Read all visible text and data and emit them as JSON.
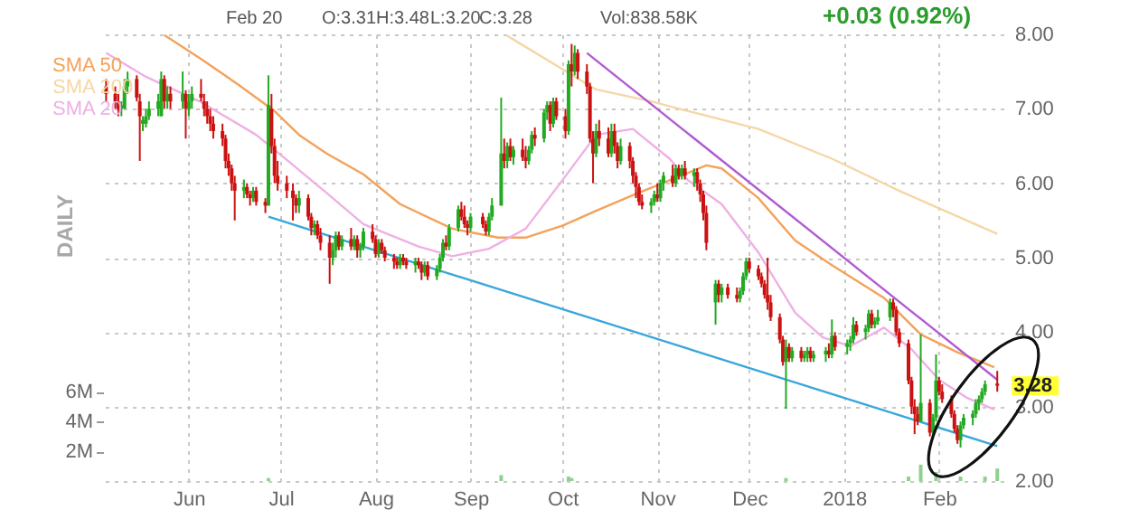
{
  "chart_data": {
    "type": "candlestick",
    "annotations": [
      "Feb 20",
      "O:3.31",
      "H:3.48",
      "L:3.20",
      "C:3.28",
      "Vol:838.58K",
      "+0.03 (0.92%)",
      "DAILY",
      {
        "text": "3.28",
        "x": "2018-02-20",
        "y": 3.28
      }
    ],
    "x": [
      "2017-05-05",
      "2017-05-08",
      "2017-05-09",
      "2017-05-10",
      "2017-05-11",
      "2017-05-12",
      "2017-05-15",
      "2017-05-16",
      "2017-05-17",
      "2017-05-18",
      "2017-05-19",
      "2017-05-22",
      "2017-05-23",
      "2017-05-24",
      "2017-05-25",
      "2017-05-26",
      "2017-05-30",
      "2017-05-31",
      "2017-06-01",
      "2017-06-02",
      "2017-06-05",
      "2017-06-06",
      "2017-06-07",
      "2017-06-08",
      "2017-06-09",
      "2017-06-12",
      "2017-06-13",
      "2017-06-14",
      "2017-06-15",
      "2017-06-16",
      "2017-06-19",
      "2017-06-20",
      "2017-06-21",
      "2017-06-22",
      "2017-06-23",
      "2017-06-26",
      "2017-06-27",
      "2017-06-28",
      "2017-06-29",
      "2017-06-30",
      "2017-07-03",
      "2017-07-05",
      "2017-07-06",
      "2017-07-07",
      "2017-07-10",
      "2017-07-11",
      "2017-07-12",
      "2017-07-13",
      "2017-07-14",
      "2017-07-17",
      "2017-07-18",
      "2017-07-19",
      "2017-07-20",
      "2017-07-21",
      "2017-07-24",
      "2017-07-25",
      "2017-07-26",
      "2017-07-27",
      "2017-07-28",
      "2017-07-31",
      "2017-08-01",
      "2017-08-02",
      "2017-08-03",
      "2017-08-04",
      "2017-08-07",
      "2017-08-08",
      "2017-08-09",
      "2017-08-10",
      "2017-08-11",
      "2017-08-14",
      "2017-08-15",
      "2017-08-16",
      "2017-08-17",
      "2017-08-18",
      "2017-08-21",
      "2017-08-22",
      "2017-08-23",
      "2017-08-24",
      "2017-08-25",
      "2017-08-28",
      "2017-08-29",
      "2017-08-30",
      "2017-08-31",
      "2017-09-01",
      "2017-09-05",
      "2017-09-06",
      "2017-09-07",
      "2017-09-08",
      "2017-09-11",
      "2017-09-12",
      "2017-09-13",
      "2017-09-14",
      "2017-09-15",
      "2017-09-18",
      "2017-09-19",
      "2017-09-20",
      "2017-09-21",
      "2017-09-22",
      "2017-09-25",
      "2017-09-26",
      "2017-09-27",
      "2017-09-28",
      "2017-09-29",
      "2017-10-02",
      "2017-10-03",
      "2017-10-04",
      "2017-10-05",
      "2017-10-06",
      "2017-10-09",
      "2017-10-10",
      "2017-10-11",
      "2017-10-12",
      "2017-10-13",
      "2017-10-16",
      "2017-10-17",
      "2017-10-18",
      "2017-10-19",
      "2017-10-20",
      "2017-10-23",
      "2017-10-24",
      "2017-10-25",
      "2017-10-26",
      "2017-10-27",
      "2017-10-30",
      "2017-10-31",
      "2017-11-01",
      "2017-11-02",
      "2017-11-03",
      "2017-11-06",
      "2017-11-07",
      "2017-11-08",
      "2017-11-09",
      "2017-11-10",
      "2017-11-13",
      "2017-11-14",
      "2017-11-15",
      "2017-11-16",
      "2017-11-17",
      "2017-11-20",
      "2017-11-21",
      "2017-11-22",
      "2017-11-24",
      "2017-11-27",
      "2017-11-28",
      "2017-11-29",
      "2017-11-30",
      "2017-12-01",
      "2017-12-04",
      "2017-12-05",
      "2017-12-06",
      "2017-12-07",
      "2017-12-08",
      "2017-12-11",
      "2017-12-12",
      "2017-12-13",
      "2017-12-14",
      "2017-12-15",
      "2017-12-18",
      "2017-12-19",
      "2017-12-20",
      "2017-12-21",
      "2017-12-22",
      "2017-12-26",
      "2017-12-27",
      "2017-12-28",
      "2017-12-29",
      "2018-01-02",
      "2018-01-03",
      "2018-01-04",
      "2018-01-05",
      "2018-01-08",
      "2018-01-09",
      "2018-01-10",
      "2018-01-11",
      "2018-01-12",
      "2018-01-16",
      "2018-01-17",
      "2018-01-18",
      "2018-01-19",
      "2018-01-22",
      "2018-01-23",
      "2018-01-24",
      "2018-01-25",
      "2018-01-26",
      "2018-01-29",
      "2018-01-30",
      "2018-01-31",
      "2018-02-01",
      "2018-02-02",
      "2018-02-05",
      "2018-02-06",
      "2018-02-07",
      "2018-02-08",
      "2018-02-09",
      "2018-02-12",
      "2018-02-13",
      "2018-02-14",
      "2018-02-15",
      "2018-02-16",
      "2018-02-20"
    ],
    "ohlc": [
      [
        7.3,
        7.4,
        7.1,
        7.2
      ],
      [
        7.2,
        7.3,
        7.0,
        7.1
      ],
      [
        7.1,
        7.2,
        6.9,
        7.0
      ],
      [
        7.0,
        7.1,
        6.9,
        7.05
      ],
      [
        7.0,
        7.4,
        7.0,
        7.3
      ],
      [
        7.3,
        7.5,
        7.2,
        7.4
      ],
      [
        7.4,
        7.45,
        7.1,
        7.15
      ],
      [
        7.1,
        7.2,
        6.3,
        6.9
      ],
      [
        6.8,
        6.9,
        6.7,
        6.85
      ],
      [
        6.8,
        7.0,
        6.75,
        6.9
      ],
      [
        6.9,
        7.1,
        6.85,
        7.0
      ],
      [
        7.0,
        7.2,
        6.9,
        7.1
      ],
      [
        6.9,
        7.5,
        6.9,
        7.4
      ],
      [
        7.4,
        7.45,
        7.0,
        7.1
      ],
      [
        7.1,
        7.3,
        7.0,
        7.2
      ],
      [
        7.2,
        7.3,
        7.0,
        7.1
      ],
      [
        7.1,
        7.5,
        7.0,
        7.2
      ],
      [
        7.2,
        7.25,
        6.6,
        7.0
      ],
      [
        7.0,
        7.2,
        6.9,
        7.1
      ],
      [
        7.1,
        7.3,
        7.0,
        7.2
      ],
      [
        7.2,
        7.4,
        7.1,
        7.15
      ],
      [
        7.1,
        7.2,
        6.9,
        7.0
      ],
      [
        7.0,
        7.1,
        6.8,
        6.9
      ],
      [
        6.9,
        7.0,
        6.7,
        6.8
      ],
      [
        6.8,
        6.9,
        6.6,
        6.7
      ],
      [
        6.7,
        6.8,
        6.5,
        6.6
      ],
      [
        6.6,
        6.65,
        6.2,
        6.3
      ],
      [
        6.3,
        6.4,
        6.1,
        6.2
      ],
      [
        6.2,
        6.25,
        5.9,
        6.0
      ],
      [
        6.0,
        6.1,
        5.5,
        5.9
      ],
      [
        5.9,
        6.05,
        5.8,
        5.95
      ],
      [
        5.95,
        6.0,
        5.8,
        5.85
      ],
      [
        5.85,
        5.9,
        5.7,
        5.8
      ],
      [
        5.8,
        5.95,
        5.75,
        5.9
      ],
      [
        5.9,
        5.95,
        5.7,
        5.75
      ],
      [
        5.75,
        5.8,
        5.6,
        5.7
      ],
      [
        5.7,
        7.45,
        5.7,
        7.05
      ],
      [
        7.0,
        7.2,
        6.4,
        6.5
      ],
      [
        6.5,
        6.6,
        6.0,
        6.1
      ],
      [
        6.1,
        6.3,
        5.9,
        6.0
      ],
      [
        6.0,
        6.1,
        5.8,
        5.9
      ],
      [
        5.9,
        6.0,
        5.5,
        5.8
      ],
      [
        5.8,
        5.85,
        5.6,
        5.7
      ],
      [
        5.7,
        5.9,
        5.6,
        5.8
      ],
      [
        5.8,
        5.85,
        5.5,
        5.55
      ],
      [
        5.55,
        5.6,
        5.3,
        5.4
      ],
      [
        5.4,
        5.5,
        5.3,
        5.45
      ],
      [
        5.45,
        5.5,
        5.25,
        5.3
      ],
      [
        5.3,
        5.4,
        5.1,
        5.2
      ],
      [
        5.2,
        5.3,
        4.65,
        5.0
      ],
      [
        5.0,
        5.2,
        4.9,
        5.1
      ],
      [
        5.1,
        5.35,
        5.0,
        5.3
      ],
      [
        5.3,
        5.35,
        5.1,
        5.15
      ],
      [
        5.15,
        5.3,
        5.1,
        5.25
      ],
      [
        5.25,
        5.4,
        5.1,
        5.15
      ],
      [
        5.15,
        5.3,
        5.1,
        5.25
      ],
      [
        5.25,
        5.3,
        5.0,
        5.1
      ],
      [
        5.1,
        5.2,
        5.0,
        5.15
      ],
      [
        5.15,
        5.4,
        5.1,
        5.35
      ],
      [
        5.35,
        5.45,
        5.2,
        5.25
      ],
      [
        5.25,
        5.3,
        5.0,
        5.05
      ],
      [
        5.05,
        5.25,
        5.0,
        5.2
      ],
      [
        5.2,
        5.25,
        5.05,
        5.1
      ],
      [
        5.1,
        5.15,
        4.95,
        5.0
      ],
      [
        5.0,
        5.05,
        4.85,
        4.95
      ],
      [
        4.95,
        5.0,
        4.85,
        4.9
      ],
      [
        4.9,
        5.05,
        4.85,
        5.0
      ],
      [
        5.0,
        5.05,
        4.9,
        4.95
      ],
      [
        4.95,
        5.0,
        4.85,
        4.9
      ],
      [
        4.9,
        5.0,
        4.8,
        4.95
      ],
      [
        4.95,
        5.0,
        4.85,
        4.9
      ],
      [
        4.9,
        4.95,
        4.7,
        4.8
      ],
      [
        4.8,
        4.95,
        4.75,
        4.9
      ],
      [
        4.9,
        4.95,
        4.7,
        4.75
      ],
      [
        4.75,
        4.9,
        4.7,
        4.85
      ],
      [
        4.85,
        5.05,
        4.8,
        5.0
      ],
      [
        5.0,
        5.25,
        4.95,
        5.2
      ],
      [
        5.2,
        5.3,
        5.1,
        5.15
      ],
      [
        5.15,
        5.45,
        5.1,
        5.4
      ],
      [
        5.4,
        5.7,
        5.35,
        5.65
      ],
      [
        5.65,
        5.75,
        5.5,
        5.55
      ],
      [
        5.55,
        5.7,
        5.4,
        5.45
      ],
      [
        5.45,
        5.5,
        5.3,
        5.4
      ],
      [
        5.4,
        5.6,
        5.35,
        5.55
      ],
      [
        5.55,
        5.6,
        5.4,
        5.45
      ],
      [
        5.45,
        5.5,
        5.3,
        5.35
      ],
      [
        5.35,
        5.6,
        5.3,
        5.55
      ],
      [
        5.55,
        5.8,
        5.5,
        5.7
      ],
      [
        5.7,
        7.15,
        5.7,
        6.4
      ],
      [
        6.4,
        6.6,
        6.2,
        6.3
      ],
      [
        6.3,
        6.55,
        6.2,
        6.5
      ],
      [
        6.5,
        6.6,
        6.3,
        6.35
      ],
      [
        6.35,
        6.5,
        6.25,
        6.45
      ],
      [
        6.45,
        6.6,
        6.3,
        6.35
      ],
      [
        6.35,
        6.5,
        6.2,
        6.3
      ],
      [
        6.3,
        6.5,
        6.25,
        6.45
      ],
      [
        6.45,
        6.7,
        6.4,
        6.65
      ],
      [
        6.65,
        6.75,
        6.5,
        6.6
      ],
      [
        6.6,
        7.0,
        6.55,
        6.95
      ],
      [
        6.95,
        7.1,
        6.85,
        7.05
      ],
      [
        7.05,
        7.1,
        6.7,
        6.8
      ],
      [
        6.8,
        7.15,
        6.75,
        7.1
      ],
      [
        7.1,
        7.15,
        6.85,
        6.9
      ],
      [
        6.9,
        7.0,
        6.6,
        6.7
      ],
      [
        6.7,
        7.65,
        6.65,
        7.6
      ],
      [
        7.6,
        7.87,
        7.3,
        7.5
      ],
      [
        7.5,
        7.85,
        7.45,
        7.75
      ],
      [
        7.75,
        7.8,
        7.4,
        7.5
      ],
      [
        7.5,
        7.6,
        7.2,
        7.3
      ],
      [
        7.3,
        7.35,
        6.55,
        6.6
      ],
      [
        6.6,
        6.7,
        6.0,
        6.4
      ],
      [
        6.4,
        6.8,
        6.35,
        6.7
      ],
      [
        6.7,
        6.85,
        6.5,
        6.6
      ],
      [
        6.6,
        6.75,
        6.35,
        6.4
      ],
      [
        6.4,
        6.8,
        6.35,
        6.7
      ],
      [
        6.7,
        6.8,
        6.4,
        6.5
      ],
      [
        6.5,
        6.55,
        6.2,
        6.3
      ],
      [
        6.3,
        6.6,
        6.25,
        6.5
      ],
      [
        6.5,
        6.55,
        6.2,
        6.3
      ],
      [
        6.3,
        6.35,
        6.0,
        6.1
      ],
      [
        6.1,
        6.15,
        5.8,
        5.95
      ],
      [
        5.95,
        6.0,
        5.7,
        5.75
      ],
      [
        5.75,
        5.85,
        5.65,
        5.7
      ],
      [
        5.7,
        5.8,
        5.6,
        5.75
      ],
      [
        5.75,
        5.9,
        5.7,
        5.85
      ],
      [
        5.85,
        6.0,
        5.75,
        5.8
      ],
      [
        5.8,
        6.05,
        5.75,
        6.0
      ],
      [
        6.0,
        6.15,
        5.9,
        6.1
      ],
      [
        6.1,
        6.25,
        5.95,
        6.0
      ],
      [
        6.0,
        6.25,
        5.95,
        6.2
      ],
      [
        6.2,
        6.25,
        6.05,
        6.1
      ],
      [
        6.1,
        6.25,
        6.05,
        6.2
      ],
      [
        6.2,
        6.3,
        6.05,
        6.1
      ],
      [
        6.1,
        6.2,
        5.95,
        6.15
      ],
      [
        6.15,
        6.2,
        5.9,
        6.0
      ],
      [
        6.0,
        6.05,
        5.75,
        5.85
      ],
      [
        5.85,
        5.9,
        5.5,
        5.6
      ],
      [
        5.6,
        5.7,
        5.1,
        5.2
      ],
      [
        4.4,
        4.7,
        4.1,
        4.65
      ],
      [
        4.65,
        4.7,
        4.4,
        4.5
      ],
      [
        4.5,
        4.65,
        4.4,
        4.6
      ],
      [
        4.6,
        4.65,
        4.45,
        4.5
      ],
      [
        4.5,
        4.6,
        4.4,
        4.45
      ],
      [
        4.45,
        4.6,
        4.4,
        4.55
      ],
      [
        4.55,
        4.8,
        4.5,
        4.75
      ],
      [
        4.75,
        5.0,
        4.7,
        4.95
      ],
      [
        4.95,
        5.0,
        4.8,
        4.85
      ],
      [
        4.85,
        4.9,
        4.7,
        4.75
      ],
      [
        4.75,
        4.8,
        4.6,
        4.65
      ],
      [
        4.65,
        4.7,
        4.45,
        4.5
      ],
      [
        4.5,
        5.0,
        4.3,
        4.4
      ],
      [
        4.4,
        4.5,
        4.15,
        4.2
      ],
      [
        4.2,
        4.25,
        3.85,
        3.9
      ],
      [
        3.9,
        3.95,
        3.55,
        3.6
      ],
      [
        3.6,
        3.9,
        2.97,
        3.8
      ],
      [
        3.8,
        3.85,
        3.6,
        3.65
      ],
      [
        3.65,
        3.8,
        3.6,
        3.75
      ],
      [
        3.75,
        3.8,
        3.6,
        3.65
      ],
      [
        3.65,
        3.75,
        3.6,
        3.7
      ],
      [
        3.7,
        3.8,
        3.6,
        3.75
      ],
      [
        3.75,
        3.8,
        3.6,
        3.65
      ],
      [
        3.65,
        3.75,
        3.6,
        3.7
      ],
      [
        3.7,
        3.8,
        3.6,
        3.75
      ],
      [
        3.75,
        3.85,
        3.65,
        3.7
      ],
      [
        3.7,
        4.17,
        3.65,
        3.95
      ],
      [
        3.95,
        4.0,
        3.75,
        3.8
      ],
      [
        3.8,
        3.9,
        3.7,
        3.85
      ],
      [
        3.85,
        3.95,
        3.75,
        3.9
      ],
      [
        3.9,
        4.2,
        3.85,
        4.1
      ],
      [
        4.1,
        4.15,
        3.95,
        4.0
      ],
      [
        4.0,
        4.1,
        3.9,
        4.05
      ],
      [
        4.05,
        4.3,
        4.0,
        4.25
      ],
      [
        4.25,
        4.3,
        4.05,
        4.1
      ],
      [
        4.1,
        4.2,
        4.05,
        4.15
      ],
      [
        4.15,
        4.3,
        4.1,
        4.2
      ],
      [
        4.2,
        4.45,
        4.15,
        4.4
      ],
      [
        4.4,
        4.45,
        4.2,
        4.3
      ],
      [
        4.3,
        4.35,
        3.95,
        4.0
      ],
      [
        4.0,
        4.05,
        3.8,
        3.85
      ],
      [
        3.85,
        3.9,
        3.3,
        3.35
      ],
      [
        3.35,
        3.4,
        2.9,
        3.0
      ],
      [
        3.0,
        3.1,
        2.63,
        2.9
      ],
      [
        2.9,
        3.0,
        2.75,
        2.8
      ],
      [
        2.8,
        3.97,
        2.8,
        3.05
      ],
      [
        3.05,
        3.1,
        2.6,
        2.65
      ],
      [
        2.65,
        2.9,
        2.6,
        2.85
      ],
      [
        2.85,
        3.7,
        2.8,
        3.35
      ],
      [
        3.35,
        3.4,
        3.15,
        3.2
      ],
      [
        3.2,
        3.3,
        3.05,
        3.1
      ],
      [
        3.1,
        3.15,
        2.85,
        2.9
      ],
      [
        2.9,
        2.95,
        2.65,
        2.7
      ],
      [
        2.7,
        2.75,
        2.5,
        2.55
      ],
      [
        2.55,
        2.8,
        2.45,
        2.75
      ],
      [
        2.75,
        2.9,
        2.7,
        2.85
      ],
      [
        2.85,
        2.95,
        2.75,
        2.9
      ],
      [
        2.9,
        3.1,
        2.85,
        3.05
      ],
      [
        3.05,
        3.15,
        2.95,
        3.1
      ],
      [
        3.1,
        3.25,
        3.05,
        3.2
      ],
      [
        3.2,
        3.35,
        3.15,
        3.3
      ],
      [
        3.31,
        3.48,
        3.2,
        3.28
      ]
    ],
    "series": [
      {
        "name": "SMA 50",
        "type": "line",
        "color": "#f4a25a",
        "x": [
          "2017-05-24",
          "2017-06-05",
          "2017-06-17",
          "2017-06-29",
          "2017-07-07",
          "2017-07-16",
          "2017-07-28",
          "2017-08-09",
          "2017-08-26",
          "2017-09-10",
          "2017-09-19",
          "2017-10-01",
          "2017-10-12",
          "2017-10-24",
          "2017-11-05",
          "2017-11-17",
          "2017-11-22",
          "2017-12-04",
          "2017-12-16",
          "2017-12-28",
          "2018-01-14",
          "2018-01-26",
          "2018-02-07",
          "2018-02-19"
        ],
        "values": [
          7.99,
          7.67,
          7.33,
          6.97,
          6.65,
          6.4,
          6.12,
          5.72,
          5.39,
          5.27,
          5.27,
          5.43,
          5.63,
          5.84,
          6.04,
          6.24,
          6.2,
          5.8,
          5.23,
          4.9,
          4.46,
          3.97,
          3.73,
          3.53
        ]
      },
      {
        "name": "SMA 200",
        "type": "line",
        "color": "#f5d7a6",
        "x": [
          "2017-09-13",
          "2017-10-12",
          "2017-10-30",
          "2017-11-11",
          "2017-12-04",
          "2017-12-28",
          "2018-01-20",
          "2018-02-20"
        ],
        "values": [
          7.98,
          7.26,
          7.1,
          6.97,
          6.73,
          6.33,
          5.88,
          5.32
        ]
      },
      {
        "name": "SMA 20",
        "type": "line",
        "color": "#eeb0e4",
        "x": [
          "2017-05-05",
          "2017-05-18",
          "2017-06-05",
          "2017-06-23",
          "2017-07-04",
          "2017-07-16",
          "2017-07-28",
          "2017-08-15",
          "2017-08-26",
          "2017-09-07",
          "2017-09-19",
          "2017-10-01",
          "2017-10-12",
          "2017-10-24",
          "2017-11-05",
          "2017-11-11",
          "2017-11-22",
          "2017-12-04",
          "2017-12-16",
          "2017-12-25",
          "2018-01-03",
          "2018-01-14",
          "2018-01-23",
          "2018-02-01",
          "2018-02-10",
          "2018-02-19"
        ],
        "values": [
          7.75,
          7.43,
          7.09,
          6.65,
          6.28,
          5.87,
          5.45,
          5.15,
          5.02,
          5.12,
          5.39,
          6.04,
          6.65,
          6.73,
          6.33,
          6.04,
          5.72,
          5.07,
          4.26,
          3.93,
          3.81,
          4.06,
          3.77,
          3.36,
          3.12,
          2.96
        ]
      },
      {
        "type": "line",
        "color": "#3aa7dc",
        "x": [
          "2017-06-27",
          "2018-02-20"
        ],
        "values": [
          5.55,
          2.47
        ]
      },
      {
        "type": "line",
        "color": "#b15bd0",
        "x": [
          "2017-10-09",
          "2018-02-20"
        ],
        "values": [
          7.75,
          3.36
        ]
      },
      {
        "type": "bar",
        "axis": "y2",
        "color": "#8fd08f",
        "x": [
          "2017-06-27",
          "2017-09-11",
          "2017-10-03",
          "2017-10-04",
          "2017-12-13",
          "2018-01-22",
          "2018-01-26",
          "2018-01-31",
          "2018-02-08",
          "2018-02-16",
          "2018-02-20"
        ],
        "values": [
          0.2,
          0.4,
          0.3,
          0.2,
          0.2,
          0.3,
          1.1,
          0.6,
          0.3,
          0.3,
          0.84
        ]
      }
    ],
    "xlim": [
      "2017-05-04",
      "2018-02-22"
    ],
    "xticks": [
      {
        "value": "2017-06-01",
        "label": "Jun"
      },
      {
        "value": "2017-07-01",
        "label": "Jul"
      },
      {
        "value": "2017-08-01",
        "label": "Aug"
      },
      {
        "value": "2017-09-01",
        "label": "Sep"
      },
      {
        "value": "2017-10-01",
        "label": "Oct"
      },
      {
        "value": "2017-11-01",
        "label": "Nov"
      },
      {
        "value": "2017-12-01",
        "label": "Dec"
      },
      {
        "value": "2018-01-01",
        "label": "2018"
      },
      {
        "value": "2018-02-01",
        "label": "Feb"
      }
    ],
    "ylim": [
      2,
      8
    ],
    "yticks": [
      {
        "value": 2,
        "label": "2.00"
      },
      {
        "value": 3,
        "label": "3.00"
      },
      {
        "value": 4,
        "label": "4.00"
      },
      {
        "value": 5,
        "label": "5.00"
      },
      {
        "value": 6,
        "label": "6.00"
      },
      {
        "value": 7,
        "label": "7.00"
      },
      {
        "value": 8,
        "label": "8.00"
      }
    ],
    "y2lim": [
      0,
      30
    ],
    "y2ticks": [
      {
        "value": 2,
        "label": "2M"
      },
      {
        "value": 4,
        "label": "4M"
      },
      {
        "value": 6,
        "label": "6M"
      }
    ],
    "grid": true,
    "legend": "top left",
    "line_style": "solid"
  }
}
